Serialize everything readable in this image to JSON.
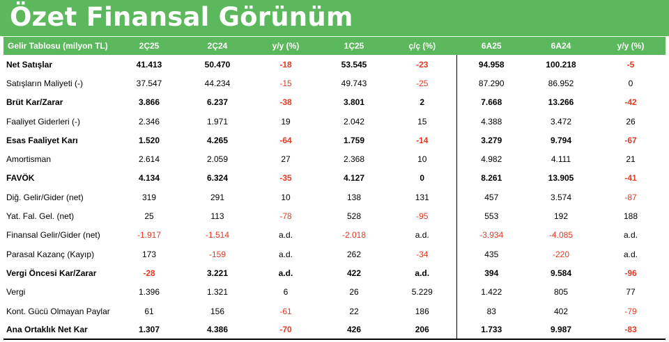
{
  "title": "Özet Finansal Görünüm",
  "colors": {
    "accent": "#5cb85c",
    "negative": "#e03a24"
  },
  "table": {
    "headers": [
      "Gelir Tablosu (milyon TL)",
      "2Ç25",
      "2Ç24",
      "y/y (%)",
      "1Ç25",
      "ç/ç (%)",
      "6A25",
      "6A24",
      "y/y (%)"
    ],
    "rows": [
      {
        "label": "Net Satışlar",
        "bold": true,
        "cells": [
          "41.413",
          "50.470",
          "-18",
          "53.545",
          "-23",
          "94.958",
          "100.218",
          "-5"
        ]
      },
      {
        "label": "Satışların Maliyeti (-)",
        "bold": false,
        "cells": [
          "37.547",
          "44.234",
          "-15",
          "49.743",
          "-25",
          "87.290",
          "86.952",
          "0"
        ]
      },
      {
        "label": "Brüt Kar/Zarar",
        "bold": true,
        "cells": [
          "3.866",
          "6.237",
          "-38",
          "3.801",
          "2",
          "7.668",
          "13.266",
          "-42"
        ]
      },
      {
        "label": "Faaliyet Giderleri (-)",
        "bold": false,
        "cells": [
          "2.346",
          "1.971",
          "19",
          "2.042",
          "15",
          "4.388",
          "3.472",
          "26"
        ]
      },
      {
        "label": "Esas Faaliyet Karı",
        "bold": true,
        "cells": [
          "1.520",
          "4.265",
          "-64",
          "1.759",
          "-14",
          "3.279",
          "9.794",
          "-67"
        ]
      },
      {
        "label": "Amortisman",
        "bold": false,
        "cells": [
          "2.614",
          "2.059",
          "27",
          "2.368",
          "10",
          "4.982",
          "4.111",
          "21"
        ]
      },
      {
        "label": "FAVÖK",
        "bold": true,
        "cells": [
          "4.134",
          "6.324",
          "-35",
          "4.127",
          "0",
          "8.261",
          "13.905",
          "-41"
        ]
      },
      {
        "label": "Diğ. Gelir/Gider (net)",
        "bold": false,
        "cells": [
          "319",
          "291",
          "10",
          "138",
          "131",
          "457",
          "3.574",
          "-87"
        ]
      },
      {
        "label": "Yat. Fal. Gel. (net)",
        "bold": false,
        "cells": [
          "25",
          "113",
          "-78",
          "528",
          "-95",
          "553",
          "192",
          "188"
        ]
      },
      {
        "label": "Finansal Gelir/Gider (net)",
        "bold": false,
        "cells": [
          "-1.917",
          "-1.514",
          "a.d.",
          "-2.018",
          "a.d.",
          "-3.934",
          "-4.085",
          "a.d."
        ]
      },
      {
        "label": "Parasal Kazanç (Kayıp)",
        "bold": false,
        "cells": [
          "173",
          "-159",
          "a.d.",
          "262",
          "-34",
          "435",
          "-220",
          "a.d."
        ]
      },
      {
        "label": "Vergi Öncesi Kar/Zarar",
        "bold": true,
        "cells": [
          "-28",
          "3.221",
          "a.d.",
          "422",
          "a.d.",
          "394",
          "9.584",
          "-96"
        ]
      },
      {
        "label": "Vergi",
        "bold": false,
        "cells": [
          "1.396",
          "1.321",
          "6",
          "26",
          "5.229",
          "1.422",
          "805",
          "77"
        ]
      },
      {
        "label": "Kont. Gücü Olmayan Paylar",
        "bold": false,
        "cells": [
          "61",
          "156",
          "-61",
          "22",
          "186",
          "83",
          "402",
          "-79"
        ]
      },
      {
        "label": "Ana Ortaklık Net Kar",
        "bold": true,
        "cells": [
          "1.307",
          "4.386",
          "-70",
          "426",
          "206",
          "1.733",
          "9.987",
          "-83"
        ]
      }
    ]
  }
}
